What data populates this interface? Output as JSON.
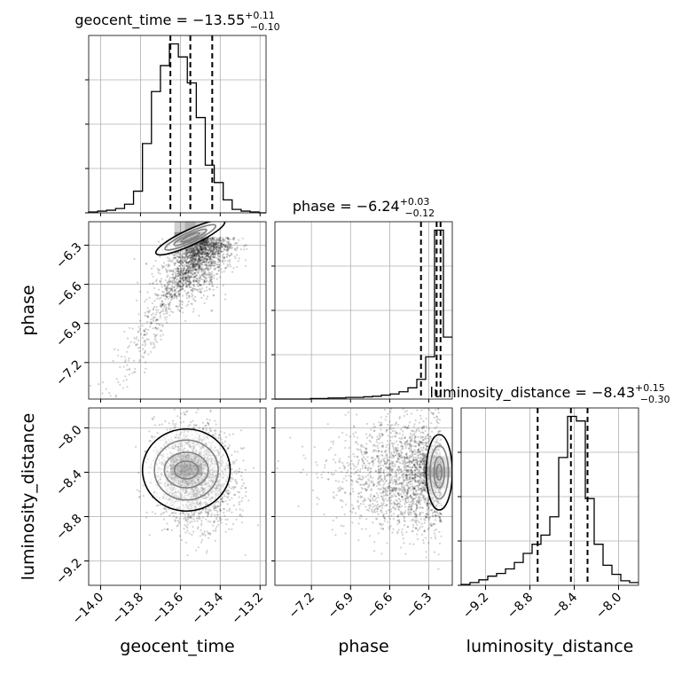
{
  "chart_data": {
    "type": "corner",
    "parameters": [
      "geocent_time",
      "phase",
      "luminosity_distance"
    ],
    "titles": [
      {
        "prefix": "geocent_time = −13.55",
        "plus": "+0.11",
        "minus": "−0.10"
      },
      {
        "prefix": "phase = −6.24",
        "plus": "+0.03",
        "minus": "−0.12"
      },
      {
        "prefix": "luminosity_distance = −8.43",
        "plus": "+0.15",
        "minus": "−0.30"
      }
    ],
    "ranges": [
      [
        -14.06,
        -13.17
      ],
      [
        -7.48,
        -6.12
      ],
      [
        -9.42,
        -7.82
      ]
    ],
    "ticks": [
      {
        "values": [
          -14.0,
          -13.8,
          -13.6,
          -13.4,
          -13.2
        ],
        "labels": [
          "−14.0",
          "−13.8",
          "−13.6",
          "−13.4",
          "−13.2"
        ]
      },
      {
        "values": [
          -7.2,
          -6.9,
          -6.6,
          -6.3
        ],
        "labels": [
          "−7.2",
          "−6.9",
          "−6.6",
          "−6.3"
        ]
      },
      {
        "values": [
          -9.2,
          -8.8,
          -8.4,
          -8.0
        ],
        "labels": [
          "−9.2",
          "−8.8",
          "−8.4",
          "−8.0"
        ]
      }
    ],
    "quantiles": [
      [
        -13.65,
        -13.55,
        -13.44
      ],
      [
        -6.36,
        -6.24,
        -6.21
      ],
      [
        -8.73,
        -8.43,
        -8.28
      ]
    ],
    "histograms": [
      {
        "edges": [
          -14.06,
          -14.015,
          -13.97,
          -13.925,
          -13.88,
          -13.835,
          -13.79,
          -13.745,
          -13.7,
          -13.655,
          -13.61,
          -13.565,
          -13.52,
          -13.475,
          -13.43,
          -13.385,
          -13.34,
          -13.295,
          -13.25,
          -13.205,
          -13.17
        ],
        "counts": [
          1,
          2,
          3,
          5,
          10,
          25,
          80,
          140,
          170,
          195,
          180,
          150,
          110,
          55,
          35,
          15,
          4,
          2,
          1,
          0
        ]
      },
      {
        "edges": [
          -7.48,
          -7.412,
          -7.344,
          -7.276,
          -7.208,
          -7.14,
          -7.072,
          -7.004,
          -6.936,
          -6.868,
          -6.8,
          -6.732,
          -6.664,
          -6.596,
          -6.528,
          -6.46,
          -6.392,
          -6.324,
          -6.256,
          -6.188,
          -6.12
        ],
        "counts": [
          0,
          0,
          0,
          0,
          1,
          1,
          2,
          2,
          3,
          3,
          4,
          5,
          7,
          9,
          13,
          20,
          35,
          75,
          300,
          110
        ]
      },
      {
        "edges": [
          -9.42,
          -9.34,
          -9.26,
          -9.18,
          -9.1,
          -9.02,
          -8.94,
          -8.86,
          -8.78,
          -8.7,
          -8.62,
          -8.54,
          -8.46,
          -8.38,
          -8.3,
          -8.22,
          -8.14,
          -8.06,
          -7.98,
          -7.9,
          -7.82
        ],
        "counts": [
          1,
          3,
          6,
          10,
          13,
          18,
          25,
          35,
          45,
          55,
          75,
          140,
          185,
          180,
          95,
          45,
          22,
          12,
          5,
          3
        ]
      }
    ],
    "pairs": [
      {
        "x": 0,
        "y": 1,
        "mean": [
          -13.5,
          -6.35
        ],
        "sd": [
          0.09,
          0.22
        ],
        "corr": 0.7,
        "levels": [
          [
            0.05,
            0.015
          ],
          [
            0.09,
            0.025
          ],
          [
            0.14,
            0.04
          ],
          [
            0.19,
            0.06
          ]
        ],
        "density_peak": [
          -13.55,
          -6.24
        ]
      },
      {
        "x": 0,
        "y": 2,
        "mean": [
          -13.53,
          -8.43
        ],
        "sd": [
          0.1,
          0.22
        ],
        "corr": -0.1,
        "levels": [
          [
            0.06,
            0.08
          ],
          [
            0.11,
            0.16
          ],
          [
            0.16,
            0.27
          ],
          [
            0.22,
            0.37
          ]
        ],
        "density_peak": [
          -13.57,
          -8.38
        ]
      },
      {
        "x": 1,
        "y": 2,
        "mean": [
          -6.27,
          -8.43
        ],
        "sd": [
          0.22,
          0.25
        ],
        "corr": 0.05,
        "levels": [
          [
            0.02,
            0.07
          ],
          [
            0.04,
            0.14
          ],
          [
            0.07,
            0.24
          ],
          [
            0.1,
            0.34
          ]
        ],
        "density_peak": [
          -6.22,
          -8.4
        ]
      }
    ],
    "grid": true
  }
}
